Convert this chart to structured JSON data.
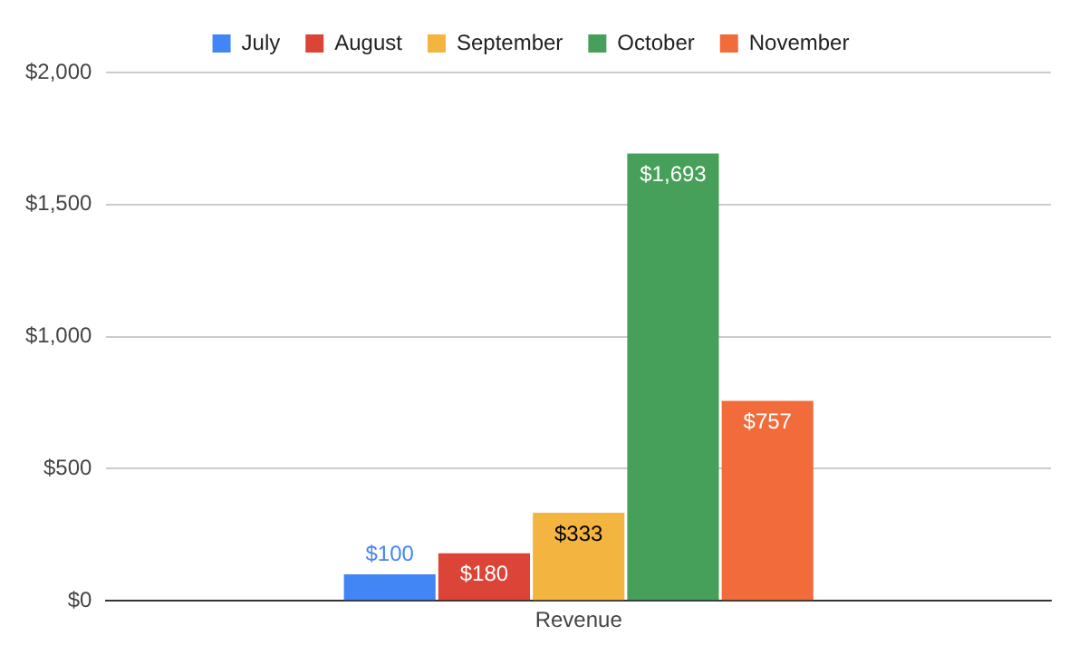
{
  "chart_data": {
    "type": "bar",
    "categories": [
      "Revenue"
    ],
    "series": [
      {
        "name": "July",
        "color": "#4285f4",
        "values": [
          100
        ],
        "value_labels": [
          "$100"
        ]
      },
      {
        "name": "August",
        "color": "#db4437",
        "values": [
          180
        ],
        "value_labels": [
          "$180"
        ]
      },
      {
        "name": "September",
        "color": "#f4b440",
        "values": [
          333
        ],
        "value_labels": [
          "$333"
        ]
      },
      {
        "name": "October",
        "color": "#47a05a",
        "values": [
          1693
        ],
        "value_labels": [
          "$1,693"
        ]
      },
      {
        "name": "November",
        "color": "#f26b3a",
        "values": [
          757
        ],
        "value_labels": [
          "$757"
        ]
      }
    ],
    "ylim": [
      0,
      2000
    ],
    "yticks": [
      {
        "value": 0,
        "label": "$0"
      },
      {
        "value": 500,
        "label": "$500"
      },
      {
        "value": 1000,
        "label": "$1,000"
      },
      {
        "value": 1500,
        "label": "$1,500"
      },
      {
        "value": 2000,
        "label": "$2,000"
      }
    ],
    "grid": "y",
    "legend": "top"
  }
}
